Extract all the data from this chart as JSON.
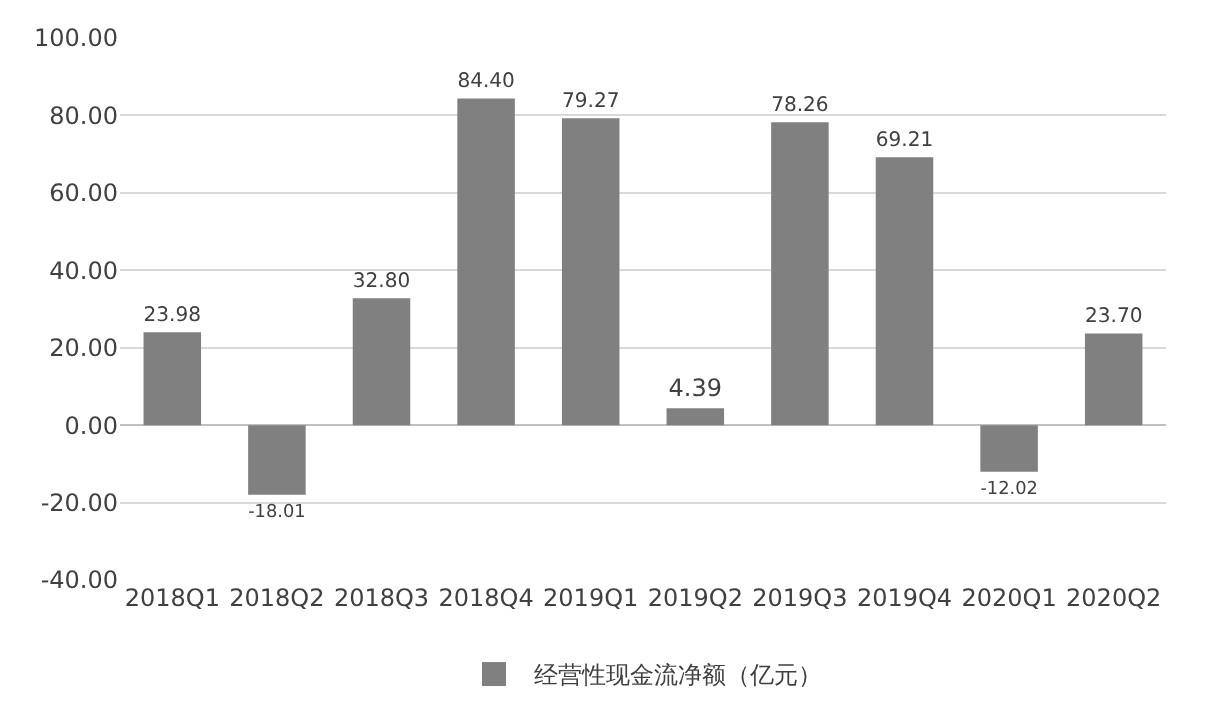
{
  "chart_data": {
    "type": "bar",
    "categories": [
      "2018Q1",
      "2018Q2",
      "2018Q3",
      "2018Q4",
      "2019Q1",
      "2019Q2",
      "2019Q3",
      "2019Q4",
      "2020Q1",
      "2020Q2"
    ],
    "series": [
      {
        "name": "经营性现金流净额（亿元）",
        "color": "#808080",
        "values": [
          23.98,
          -18.01,
          32.8,
          84.4,
          79.27,
          4.39,
          78.26,
          69.21,
          -12.02,
          23.7
        ],
        "value_labels": [
          "23.98",
          "-18.01",
          "32.80",
          "84.40",
          "79.27",
          "4.39",
          "78.26",
          "69.21",
          "-12.02",
          "23.70"
        ]
      }
    ],
    "ylim": [
      -40,
      100
    ],
    "yticks": [
      {
        "value": -40,
        "label": "-40.00"
      },
      {
        "value": -20,
        "label": "-20.00"
      },
      {
        "value": 0,
        "label": "0.00"
      },
      {
        "value": 20,
        "label": "20.00"
      },
      {
        "value": 40,
        "label": "40.00"
      },
      {
        "value": 60,
        "label": "60.00"
      },
      {
        "value": 80,
        "label": "80.00"
      },
      {
        "value": 100,
        "label": "100.00"
      }
    ],
    "grid": "y",
    "legend": "bottom"
  }
}
